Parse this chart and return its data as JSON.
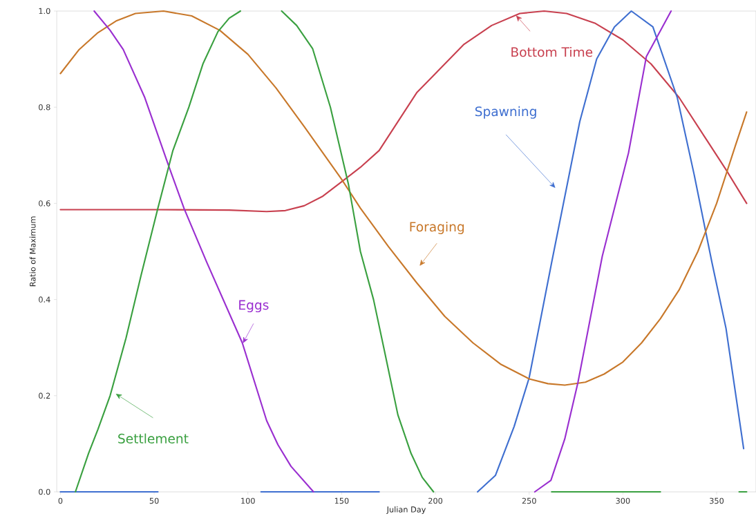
{
  "chart_data": {
    "type": "line",
    "xlabel": "Julian Day",
    "ylabel": "Ratio of Maximum",
    "xlim": [
      -2,
      371
    ],
    "ylim": [
      0,
      1
    ],
    "xticks": [
      0,
      50,
      100,
      150,
      200,
      250,
      300,
      350
    ],
    "yticks": [
      {
        "value": 0,
        "label": "0.0"
      },
      {
        "value": 0.2,
        "label": "0.2"
      },
      {
        "value": 0.4,
        "label": "0.4"
      },
      {
        "value": 0.6,
        "label": "0.6"
      },
      {
        "value": 0.8,
        "label": "0.8"
      },
      {
        "value": 1,
        "label": "1.0"
      }
    ],
    "series": [
      {
        "name": "Bottom Time",
        "color": "#c8404f",
        "x": [
          0,
          50,
          90,
          110,
          120,
          130,
          140,
          150,
          160,
          170,
          180,
          190,
          200,
          215,
          230,
          245,
          258,
          270,
          285,
          300,
          315,
          330,
          345,
          355,
          366
        ],
        "values": [
          0.587,
          0.587,
          0.586,
          0.583,
          0.585,
          0.595,
          0.615,
          0.645,
          0.675,
          0.71,
          0.77,
          0.83,
          0.87,
          0.93,
          0.97,
          0.995,
          1.0,
          0.995,
          0.975,
          0.94,
          0.89,
          0.82,
          0.73,
          0.67,
          0.6
        ]
      },
      {
        "name": "Spawning",
        "color": "#3f6fd0",
        "x": [
          0,
          52,
          80,
          107,
          170,
          200,
          222.5,
          232,
          242,
          250,
          262,
          277,
          286,
          295.5,
          304.5,
          316,
          329,
          338,
          347.5,
          355,
          364.4
        ],
        "values": [
          0,
          0,
          null,
          0,
          0,
          null,
          0,
          0.034,
          0.136,
          0.237,
          0.477,
          0.77,
          0.9,
          0.967,
          1.0,
          0.967,
          0.82,
          0.66,
          0.477,
          0.34,
          0.09
        ]
      },
      {
        "name": "Foraging",
        "color": "#c8782a",
        "x": [
          0,
          10,
          20,
          30,
          40,
          55,
          70,
          85,
          100,
          115,
          130,
          140,
          150,
          160,
          175,
          190,
          205,
          220,
          235,
          250,
          260,
          269,
          280,
          290,
          300,
          310,
          320,
          330,
          340,
          350,
          360,
          366
        ],
        "values": [
          0.87,
          0.92,
          0.955,
          0.98,
          0.995,
          1.0,
          0.99,
          0.96,
          0.91,
          0.84,
          0.76,
          0.705,
          0.65,
          0.59,
          0.51,
          0.435,
          0.365,
          0.31,
          0.265,
          0.235,
          0.225,
          0.222,
          0.228,
          0.245,
          0.27,
          0.31,
          0.36,
          0.42,
          0.5,
          0.6,
          0.72,
          0.79
        ]
      },
      {
        "name": "Eggs",
        "color": "#9a2fd0",
        "x": [
          18,
          26.5,
          33.5,
          45,
          58,
          66,
          78,
          97,
          110,
          116,
          123,
          135,
          200,
          253,
          261.6,
          269,
          276,
          289,
          303,
          312.5,
          325.7
        ],
        "values": [
          1.0,
          0.96,
          0.92,
          0.82,
          0.675,
          0.589,
          0.478,
          0.31,
          0.148,
          0.098,
          0.053,
          0,
          null,
          0,
          0.024,
          0.11,
          0.227,
          0.49,
          0.705,
          0.905,
          1.0
        ]
      },
      {
        "name": "Settlement",
        "color": "#3aa040",
        "x": [
          8,
          15,
          20,
          26.5,
          35,
          43,
          52,
          60,
          68.5,
          76,
          84,
          90,
          96,
          107,
          118,
          126,
          134.5,
          144,
          153.6,
          160,
          167,
          173,
          180,
          187,
          193,
          199,
          230,
          262,
          320,
          340,
          362,
          366
        ],
        "values": [
          0,
          0.08,
          0.13,
          0.2,
          0.32,
          0.45,
          0.59,
          0.71,
          0.8,
          0.89,
          0.957,
          0.985,
          1.0,
          null,
          1.0,
          0.97,
          0.922,
          0.8,
          0.64,
          0.5,
          0.4,
          0.29,
          0.16,
          0.08,
          0.03,
          0,
          null,
          0,
          0,
          null,
          0,
          0
        ]
      }
    ]
  }
}
